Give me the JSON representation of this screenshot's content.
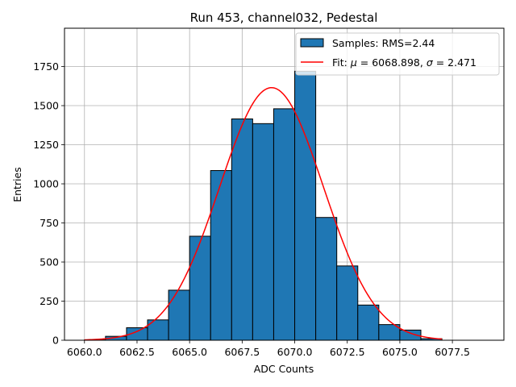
{
  "chart_data": {
    "type": "bar",
    "title": "Run 453, channel032, Pedestal",
    "xlabel": "ADC Counts",
    "ylabel": "Entries",
    "xlim": [
      6059.05,
      6079.95
    ],
    "ylim": [
      0,
      1995
    ],
    "grid": true,
    "legend_position": "top-right",
    "xticks": [
      6060.0,
      6062.5,
      6065.0,
      6067.5,
      6070.0,
      6072.5,
      6075.0,
      6077.5
    ],
    "xtick_labels": [
      "6060.0",
      "6062.5",
      "6065.0",
      "6067.5",
      "6070.0",
      "6072.5",
      "6075.0",
      "6077.5"
    ],
    "yticks": [
      0,
      250,
      500,
      750,
      1000,
      1250,
      1500,
      1750
    ],
    "ytick_labels": [
      "0",
      "250",
      "500",
      "750",
      "1000",
      "1250",
      "1500",
      "1750"
    ],
    "series": [
      {
        "name": "Samples: RMS=2.44",
        "type": "histogram",
        "color": "#1f77b4",
        "edge_color": "#000000",
        "bin_edges": [
          6060,
          6061,
          6062,
          6063,
          6064,
          6065,
          6066,
          6067,
          6068,
          6069,
          6070,
          6071,
          6072,
          6073,
          6074,
          6075,
          6076,
          6077,
          6078,
          6079
        ],
        "counts": [
          2,
          25,
          80,
          130,
          320,
          665,
          1085,
          1415,
          1385,
          1480,
          1720,
          785,
          475,
          225,
          100,
          65,
          10,
          0,
          0
        ]
      },
      {
        "name": "Fit: μ = 6068.898, σ = 2.471",
        "legend_parts": {
          "prefix": "Fit: ",
          "mu": "μ",
          "mid": " = 6068.898, ",
          "sigma": "σ",
          "suffix": " = 2.471"
        },
        "type": "gaussian",
        "color": "#ff0000",
        "mu": 6068.898,
        "sigma": 2.471,
        "amplitude": 1615,
        "x_range": [
          6060,
          6077
        ]
      }
    ]
  }
}
